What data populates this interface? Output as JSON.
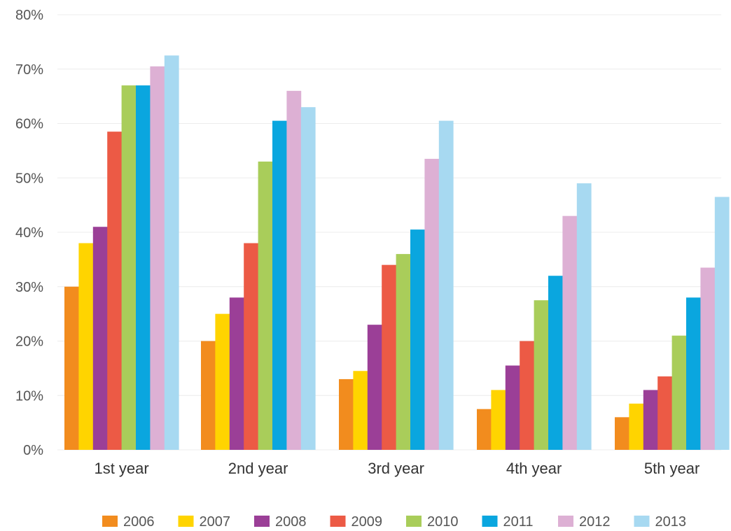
{
  "chart_data": {
    "type": "bar",
    "categories": [
      "1st year",
      "2nd year",
      "3rd year",
      "4th year",
      "5th year"
    ],
    "y_ticks": [
      "0%",
      "10%",
      "20%",
      "30%",
      "40%",
      "50%",
      "60%",
      "70%",
      "80%"
    ],
    "ylim": [
      0,
      80
    ],
    "grid": true,
    "legend_position": "bottom",
    "title": "",
    "xlabel": "",
    "ylabel": "",
    "series": [
      {
        "name": "2006",
        "color": "#f28c1e",
        "values": [
          30,
          20,
          13,
          7.5,
          6
        ]
      },
      {
        "name": "2007",
        "color": "#ffd400",
        "values": [
          38,
          25,
          14.5,
          11,
          8.5
        ]
      },
      {
        "name": "2008",
        "color": "#9b3f97",
        "values": [
          41,
          28,
          23,
          15.5,
          11
        ]
      },
      {
        "name": "2009",
        "color": "#ec5a45",
        "values": [
          58.5,
          38,
          34,
          20,
          13.5
        ]
      },
      {
        "name": "2010",
        "color": "#a9cd5a",
        "values": [
          67,
          53,
          36,
          27.5,
          21
        ]
      },
      {
        "name": "2011",
        "color": "#0aa6df",
        "values": [
          67,
          60.5,
          40.5,
          32,
          28
        ]
      },
      {
        "name": "2012",
        "color": "#ddb0d4",
        "values": [
          70.5,
          66,
          53.5,
          43,
          33.5
        ]
      },
      {
        "name": "2013",
        "color": "#a7d9f1",
        "values": [
          72.5,
          63,
          60.5,
          49,
          46.5
        ]
      }
    ]
  }
}
